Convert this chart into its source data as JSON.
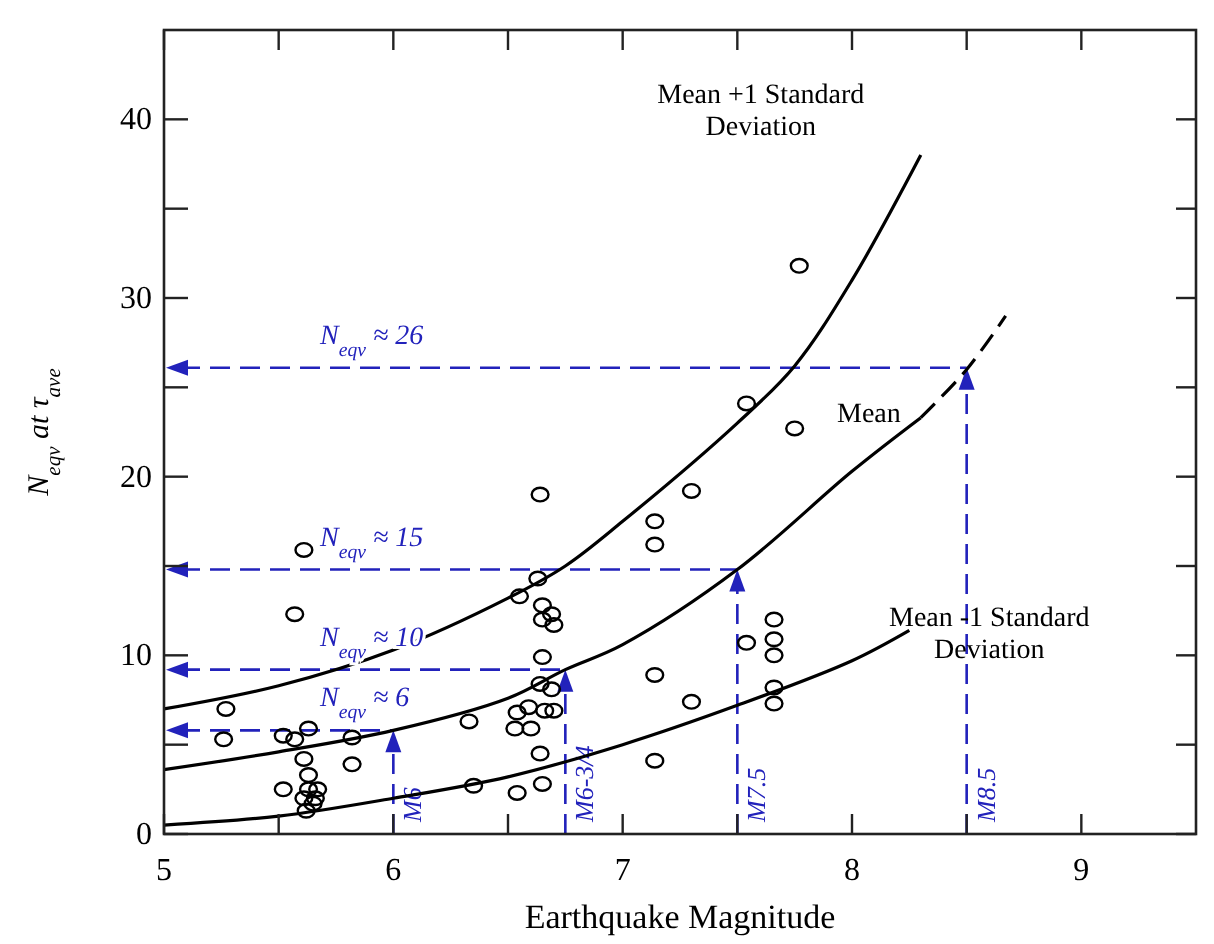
{
  "chart_data": {
    "type": "line",
    "xlabel": "Earthquake Magnitude",
    "ylabel": "N$_{eqv}$ at τ$_{ave}$",
    "xlim": [
      5,
      9.5
    ],
    "ylim": [
      0,
      45
    ],
    "xticks": [
      5,
      {
        "value": 5.5,
        "label": null
      },
      6,
      {
        "value": 6.5,
        "label": null
      },
      7,
      {
        "value": 7.5,
        "label": null
      },
      8,
      {
        "value": 8.5,
        "label": null
      },
      9
    ],
    "yticks": [
      0,
      {
        "value": 5,
        "label": null
      },
      10,
      {
        "value": 15,
        "label": null
      },
      20,
      {
        "value": 25,
        "label": null
      },
      30,
      {
        "value": 35,
        "label": null
      },
      40
    ],
    "grid": false,
    "marker": "none",
    "line_style": "solid",
    "series": [
      {
        "name": "Mean +1 Standard Deviation",
        "color": "#000000",
        "x": [
          5,
          5.5,
          6,
          6.5,
          6.75,
          7,
          7.5,
          7.75,
          8,
          8.3
        ],
        "values": [
          7.0,
          8.3,
          10.3,
          13.2,
          15,
          17.5,
          23,
          26.2,
          31,
          38
        ]
      },
      {
        "name": "Mean",
        "color": "#000000",
        "x": [
          5,
          5.5,
          6,
          6.5,
          6.75,
          7,
          7.5,
          8,
          8.3
        ],
        "values": [
          3.6,
          4.6,
          5.8,
          7.6,
          9.2,
          10.6,
          14.8,
          20.3,
          23.3
        ]
      },
      {
        "color": "#000000",
        "line_style": "dashed",
        "x": [
          8.3,
          8.5,
          8.67
        ],
        "values": [
          23.3,
          26,
          29
        ]
      },
      {
        "name": "Mean -1 Standard Deviation",
        "color": "#000000",
        "x": [
          5,
          5.5,
          6,
          6.5,
          7,
          7.5,
          8,
          8.25
        ],
        "values": [
          0.5,
          1,
          2,
          3.2,
          5,
          7.2,
          9.7,
          11.4
        ]
      },
      {
        "type": "scatter",
        "color": "#000000",
        "marker": "circle",
        "x": [
          5.27,
          5.26,
          5.52,
          5.57,
          5.63,
          5.61,
          5.57,
          5.82,
          5.82,
          5.61,
          5.52,
          5.63,
          5.63,
          5.61,
          5.66,
          5.62,
          5.67,
          5.65,
          6.33,
          6.35,
          6.54,
          6.53,
          6.54,
          6.59,
          6.6,
          6.63,
          6.55,
          6.65,
          6.69,
          6.65,
          6.7,
          6.65,
          6.64,
          6.69,
          6.66,
          6.7,
          6.64,
          6.65,
          6.64,
          7.14,
          7.14,
          7.14,
          7.14,
          7.3,
          7.3,
          7.54,
          7.75,
          7.77,
          7.54,
          7.66,
          7.66,
          7.66,
          7.66,
          7.66
        ],
        "values": [
          7.0,
          5.3,
          5.5,
          5.3,
          5.9,
          15.9,
          12.3,
          5.4,
          3.9,
          4.2,
          2.5,
          3.3,
          2.5,
          2.0,
          2.0,
          1.3,
          2.5,
          1.7,
          6.3,
          2.7,
          2.3,
          5.9,
          6.8,
          7.1,
          5.9,
          14.3,
          13.3,
          12.8,
          12.3,
          12.0,
          11.7,
          9.9,
          8.4,
          8.1,
          6.9,
          6.9,
          4.5,
          2.8,
          19.0,
          17.5,
          16.2,
          8.9,
          4.1,
          19.2,
          7.4,
          24.1,
          22.7,
          31.8,
          10.7,
          12.0,
          10.9,
          10.0,
          8.2,
          7.3
        ]
      }
    ],
    "ref_lines": [
      {
        "axis": "y",
        "value": 5.8,
        "label": "N$_{eqv}$ ≈ 6",
        "color": "#2222bb",
        "line_style": "dashed"
      },
      {
        "axis": "y",
        "value": 9.2,
        "label": "N$_{eqv}$ ≈ 10",
        "color": "#2222bb",
        "line_style": "dashed"
      },
      {
        "axis": "y",
        "value": 14.8,
        "label": "N$_{eqv}$ ≈ 15",
        "color": "#2222bb",
        "line_style": "dashed"
      },
      {
        "axis": "y",
        "value": 26.1,
        "label": "N$_{eqv}$ ≈ 26",
        "color": "#2222bb",
        "line_style": "dashed"
      },
      {
        "axis": "x",
        "value": 6,
        "label": "M6",
        "color": "#2222bb",
        "line_style": "dashed"
      },
      {
        "axis": "x",
        "value": 6.75,
        "label": "M6-3/4",
        "color": "#2222bb",
        "line_style": "dashed"
      },
      {
        "axis": "x",
        "value": 7.5,
        "label": "M7.5",
        "color": "#2222bb",
        "line_style": "dashed"
      },
      {
        "axis": "x",
        "value": 8.5,
        "label": "M8.5",
        "color": "#2222bb",
        "line_style": "dashed"
      }
    ]
  }
}
